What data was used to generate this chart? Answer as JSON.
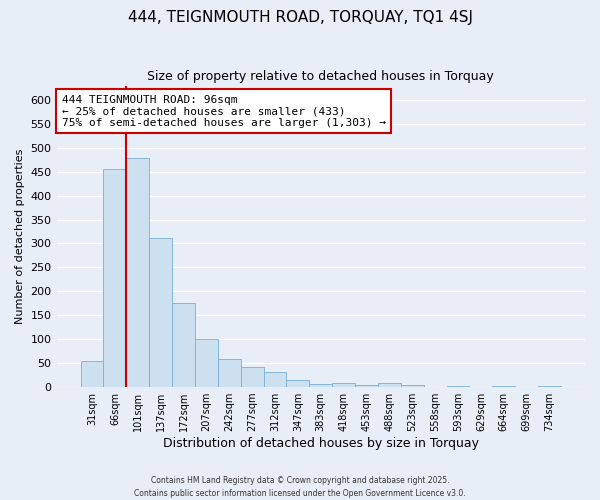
{
  "title": "444, TEIGNMOUTH ROAD, TORQUAY, TQ1 4SJ",
  "subtitle": "Size of property relative to detached houses in Torquay",
  "xlabel": "Distribution of detached houses by size in Torquay",
  "ylabel": "Number of detached properties",
  "bar_labels": [
    "31sqm",
    "66sqm",
    "101sqm",
    "137sqm",
    "172sqm",
    "207sqm",
    "242sqm",
    "277sqm",
    "312sqm",
    "347sqm",
    "383sqm",
    "418sqm",
    "453sqm",
    "488sqm",
    "523sqm",
    "558sqm",
    "593sqm",
    "629sqm",
    "664sqm",
    "699sqm",
    "734sqm"
  ],
  "bar_values": [
    55,
    455,
    478,
    312,
    175,
    100,
    58,
    42,
    32,
    15,
    7,
    8,
    5,
    8,
    5,
    0,
    3,
    0,
    2,
    0,
    2
  ],
  "bar_color": "#cce0f0",
  "bar_edge_color": "#7aafd4",
  "highlight_line_color": "#cc0000",
  "annotation_title": "444 TEIGNMOUTH ROAD: 96sqm",
  "annotation_line1": "← 25% of detached houses are smaller (433)",
  "annotation_line2": "75% of semi-detached houses are larger (1,303) →",
  "annotation_box_color": "white",
  "annotation_box_edge_color": "#cc0000",
  "ylim": [
    0,
    630
  ],
  "yticks": [
    0,
    50,
    100,
    150,
    200,
    250,
    300,
    350,
    400,
    450,
    500,
    550,
    600
  ],
  "background_color": "#e8eef8",
  "footer_line1": "Contains HM Land Registry data © Crown copyright and database right 2025.",
  "footer_line2": "Contains public sector information licensed under the Open Government Licence v3.0.",
  "title_fontsize": 11,
  "subtitle_fontsize": 9,
  "grid_color": "#ffffff"
}
